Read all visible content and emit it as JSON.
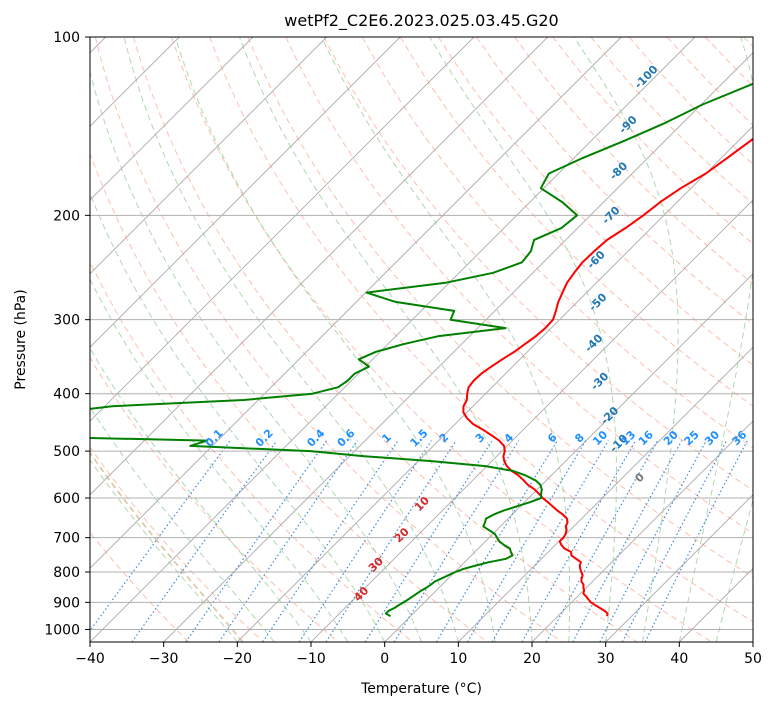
{
  "chart_data": {
    "type": "skew-t",
    "title": "wetPf2_C2E6.2023.025.03.45.G20",
    "xlabel": "Temperature (°C)",
    "ylabel": "Pressure (hPa)",
    "xlim": [
      -40,
      50
    ],
    "ylim": [
      1050,
      100
    ],
    "x_ticks": [
      -40,
      -30,
      -20,
      -10,
      0,
      10,
      20,
      30,
      40,
      50
    ],
    "y_ticks": [
      100,
      200,
      300,
      400,
      500,
      600,
      700,
      800,
      900,
      1000
    ],
    "grid": true,
    "colors": {
      "temperature": "#ff0000",
      "dewpoint": "#008000",
      "isotherm": "#9a9a9a",
      "dry_adiabat": "#fa8c6e",
      "moist_adiabat": "#8cc88c",
      "mixing_ratio": "#3c8cdc",
      "wet_bulb_zero_dash": "#d2b48c",
      "isotherm_label": "#1f77b4",
      "mixing_ratio_label": "#1e90ff",
      "dry_adiabat_label": "#d62728"
    },
    "isotherm_labels": [
      "-100",
      "-90",
      "-80",
      "-70",
      "-60",
      "-50",
      "-40",
      "-30",
      "-20",
      "-10",
      "0"
    ],
    "isotherm_label_points": [
      {
        "text": "-100",
        "t": -40.5,
        "p": 118
      },
      {
        "text": "-90",
        "t": -36.5,
        "p": 142
      },
      {
        "text": "-80",
        "t": -31.5,
        "p": 170
      },
      {
        "text": "-70",
        "t": -26.5,
        "p": 202
      },
      {
        "text": "-60",
        "t": -22.5,
        "p": 240
      },
      {
        "text": "-50",
        "t": -16.5,
        "p": 283
      },
      {
        "text": "-40",
        "t": -11.5,
        "p": 332
      },
      {
        "text": "-30",
        "t": -5.5,
        "p": 385
      },
      {
        "text": "-20",
        "t": 0.5,
        "p": 440
      },
      {
        "text": "-10",
        "t": 5.5,
        "p": 490
      },
      {
        "text": "0",
        "t": 13.0,
        "p": 560
      }
    ],
    "mixing_ratio_labels": [
      "0.1",
      "0.2",
      "0.4",
      "0.6",
      "1",
      "1.5",
      "2",
      "3",
      "4",
      "6",
      "8",
      "10",
      "13",
      "16",
      "20",
      "25",
      "30",
      "36"
    ],
    "mixing_ratio_label_xs": [
      -22.8,
      -16.0,
      -9.0,
      -4.9,
      0.6,
      5.0,
      8.4,
      13.3,
      17.2,
      23.1,
      26.8,
      29.6,
      33.4,
      35.8,
      39.2,
      42.0,
      44.8,
      48.5
    ],
    "mixing_ratio_label_pressure": 480,
    "dry_adiabat_labels": [
      {
        "text": "10",
        "t": -13.0,
        "p": 620
      },
      {
        "text": "20",
        "t": -11.5,
        "p": 700
      },
      {
        "text": "30",
        "t": -11.0,
        "p": 785
      },
      {
        "text": "40",
        "t": -9.0,
        "p": 880
      }
    ],
    "series": [
      {
        "name": "Temperature",
        "points": [
          [
            -20.8,
            100
          ],
          [
            -19.8,
            110
          ],
          [
            -18.2,
            120
          ],
          [
            -17.6,
            130
          ],
          [
            -17.6,
            140
          ],
          [
            -18.4,
            150
          ],
          [
            -19.2,
            160
          ],
          [
            -20.0,
            170
          ],
          [
            -21.4,
            180
          ],
          [
            -22.3,
            190
          ],
          [
            -22.8,
            200
          ],
          [
            -23.5,
            210
          ],
          [
            -24.4,
            220
          ],
          [
            -24.6,
            230
          ],
          [
            -24.7,
            240
          ],
          [
            -24.4,
            250
          ],
          [
            -24.0,
            260
          ],
          [
            -23.3,
            270
          ],
          [
            -22.6,
            280
          ],
          [
            -21.7,
            290
          ],
          [
            -20.9,
            300
          ],
          [
            -20.8,
            310
          ],
          [
            -21.0,
            320
          ],
          [
            -21.4,
            330
          ],
          [
            -21.8,
            340
          ],
          [
            -22.4,
            350
          ],
          [
            -22.9,
            360
          ],
          [
            -23.3,
            370
          ],
          [
            -23.4,
            380
          ],
          [
            -23.2,
            390
          ],
          [
            -22.5,
            400
          ],
          [
            -21.7,
            410
          ],
          [
            -21.3,
            420
          ],
          [
            -20.5,
            430
          ],
          [
            -19.2,
            440
          ],
          [
            -17.6,
            450
          ],
          [
            -15.5,
            460
          ],
          [
            -13.6,
            470
          ],
          [
            -11.8,
            480
          ],
          [
            -10.4,
            490
          ],
          [
            -9.6,
            500
          ],
          [
            -9.1,
            510
          ],
          [
            -8.3,
            520
          ],
          [
            -7.3,
            530
          ],
          [
            -6.0,
            540
          ],
          [
            -4.4,
            550
          ],
          [
            -3.1,
            560
          ],
          [
            -1.9,
            570
          ],
          [
            -0.4,
            580
          ],
          [
            0.8,
            590
          ],
          [
            1.9,
            600
          ],
          [
            3.2,
            610
          ],
          [
            4.4,
            620
          ],
          [
            5.6,
            630
          ],
          [
            6.9,
            640
          ],
          [
            8.0,
            650
          ],
          [
            8.6,
            660
          ],
          [
            8.9,
            670
          ],
          [
            9.5,
            680
          ],
          [
            9.9,
            690
          ],
          [
            10.1,
            700
          ],
          [
            10.1,
            710
          ],
          [
            10.8,
            720
          ],
          [
            11.7,
            730
          ],
          [
            13.1,
            740
          ],
          [
            13.6,
            750
          ],
          [
            14.7,
            760
          ],
          [
            15.8,
            770
          ],
          [
            16.1,
            780
          ],
          [
            16.6,
            790
          ],
          [
            17.2,
            800
          ],
          [
            17.8,
            810
          ],
          [
            18.1,
            820
          ],
          [
            18.5,
            830
          ],
          [
            19.2,
            840
          ],
          [
            19.6,
            850
          ],
          [
            20.1,
            860
          ],
          [
            20.4,
            870
          ],
          [
            21.2,
            880
          ],
          [
            21.9,
            890
          ],
          [
            22.6,
            900
          ],
          [
            23.6,
            910
          ],
          [
            24.6,
            920
          ],
          [
            25.6,
            930
          ],
          [
            26.4,
            940
          ],
          [
            26.7,
            950
          ]
        ]
      },
      {
        "name": "Dewpoint",
        "points": [
          [
            -21.3,
            100
          ],
          [
            -22.5,
            110
          ],
          [
            -25.8,
            120
          ],
          [
            -29.8,
            130
          ],
          [
            -32.5,
            140
          ],
          [
            -35.6,
            150
          ],
          [
            -38.8,
            160
          ],
          [
            -41.3,
            170
          ],
          [
            -40.4,
            180
          ],
          [
            -35.6,
            190
          ],
          [
            -31.8,
            200
          ],
          [
            -32.2,
            210
          ],
          [
            -34.3,
            220
          ],
          [
            -33.2,
            230
          ],
          [
            -32.9,
            240
          ],
          [
            -35.4,
            250
          ],
          [
            -40.5,
            260
          ],
          [
            -49.9,
            270
          ],
          [
            -44.7,
            280
          ],
          [
            -35.5,
            290
          ],
          [
            -34.8,
            300
          ],
          [
            -26.2,
            310
          ],
          [
            -34.3,
            320
          ],
          [
            -37.9,
            330
          ],
          [
            -40.6,
            340
          ],
          [
            -41.9,
            350
          ],
          [
            -39.5,
            360
          ],
          [
            -40.5,
            370
          ],
          [
            -40.5,
            380
          ],
          [
            -40.9,
            390
          ],
          [
            -43.5,
            400
          ],
          [
            -52.0,
            410
          ],
          [
            -69.0,
            420
          ],
          [
            -75.0,
            430
          ],
          [
            -75.0,
            440
          ],
          [
            -76.0,
            450
          ],
          [
            -84.0,
            460
          ],
          [
            -85.0,
            470
          ],
          [
            -51.4,
            480
          ],
          [
            -53.0,
            490
          ],
          [
            -36.0,
            500
          ],
          [
            -28.0,
            510
          ],
          [
            -18.0,
            520
          ],
          [
            -10.2,
            530
          ],
          [
            -5.8,
            540
          ],
          [
            -3.4,
            550
          ],
          [
            -1.5,
            560
          ],
          [
            -0.2,
            570
          ],
          [
            0.6,
            580
          ],
          [
            1.1,
            590
          ],
          [
            1.7,
            600
          ],
          [
            0.7,
            610
          ],
          [
            -0.5,
            620
          ],
          [
            -1.7,
            630
          ],
          [
            -2.5,
            640
          ],
          [
            -3.0,
            650
          ],
          [
            -2.6,
            660
          ],
          [
            -2.3,
            670
          ],
          [
            -1.0,
            680
          ],
          [
            0.3,
            690
          ],
          [
            1.1,
            700
          ],
          [
            1.9,
            710
          ],
          [
            3.0,
            720
          ],
          [
            4.3,
            730
          ],
          [
            4.9,
            740
          ],
          [
            5.6,
            750
          ],
          [
            5.2,
            760
          ],
          [
            3.3,
            770
          ],
          [
            2.0,
            780
          ],
          [
            0.8,
            790
          ],
          [
            0.1,
            800
          ],
          [
            -0.4,
            810
          ],
          [
            -0.9,
            820
          ],
          [
            -1.4,
            830
          ],
          [
            -1.5,
            840
          ],
          [
            -1.7,
            850
          ],
          [
            -2.0,
            860
          ],
          [
            -2.2,
            870
          ],
          [
            -2.4,
            880
          ],
          [
            -2.6,
            890
          ],
          [
            -2.8,
            900
          ],
          [
            -3.1,
            910
          ],
          [
            -3.3,
            920
          ],
          [
            -3.7,
            930
          ],
          [
            -3.7,
            940
          ],
          [
            -2.7,
            950
          ]
        ]
      }
    ]
  }
}
